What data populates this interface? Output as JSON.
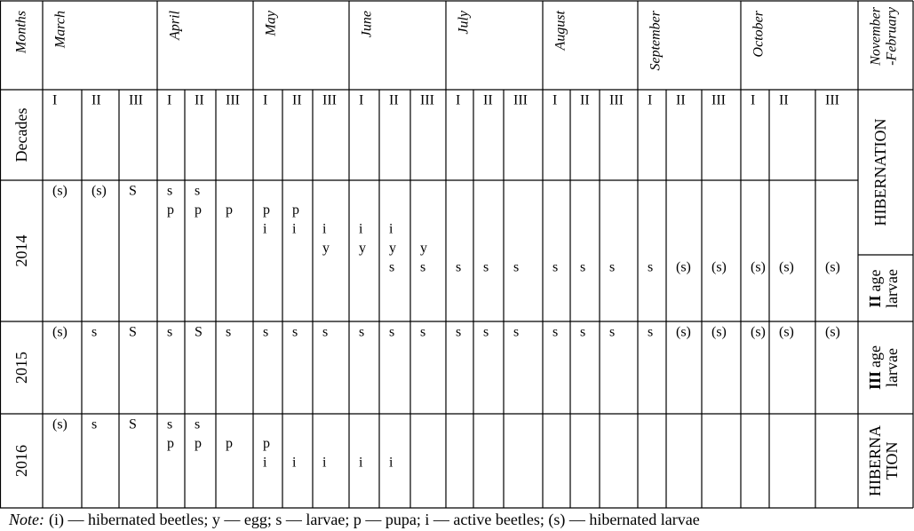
{
  "corner_label": "Months",
  "months": [
    "March",
    "April",
    "May",
    "June",
    "July",
    "August",
    "September",
    "October"
  ],
  "last_month": [
    "November",
    "-February"
  ],
  "decades": {
    "label": "Decades",
    "values": [
      "I",
      "II",
      "III",
      "I",
      "II",
      "III",
      "I",
      "II",
      "III",
      "I",
      "II",
      "III",
      "I",
      "II",
      "III",
      "I",
      "II",
      "III",
      "I",
      "II",
      "III",
      "I",
      "II",
      "III"
    ]
  },
  "rows": [
    {
      "label": "2014",
      "cells": [
        [
          "(s)"
        ],
        [
          "(s)"
        ],
        [
          "S"
        ],
        [
          "s",
          "p"
        ],
        [
          "s",
          "p"
        ],
        [
          null,
          "p"
        ],
        [
          null,
          "p",
          "i"
        ],
        [
          null,
          "p",
          "i"
        ],
        [
          null,
          null,
          "i",
          "y"
        ],
        [
          null,
          null,
          "i",
          "y"
        ],
        [
          null,
          null,
          "i",
          "y",
          "s"
        ],
        [
          null,
          null,
          null,
          "y",
          "s"
        ],
        [
          null,
          null,
          null,
          null,
          "s"
        ],
        [
          null,
          null,
          null,
          null,
          "s"
        ],
        [
          null,
          null,
          null,
          null,
          "s"
        ],
        [
          null,
          null,
          null,
          null,
          "s"
        ],
        [
          null,
          null,
          null,
          null,
          "s"
        ],
        [
          null,
          null,
          null,
          null,
          "s"
        ],
        [
          null,
          null,
          null,
          null,
          "s"
        ],
        [
          null,
          null,
          null,
          null,
          "(s)"
        ],
        [
          null,
          null,
          null,
          null,
          "(s)"
        ],
        [
          null,
          null,
          null,
          null,
          "(s)"
        ],
        [
          null,
          null,
          null,
          null,
          "(s)"
        ],
        [
          null,
          null,
          null,
          null,
          "(s)"
        ]
      ]
    },
    {
      "label": "2015",
      "cells": [
        [
          "(s)"
        ],
        [
          "s"
        ],
        [
          "S"
        ],
        [
          "s"
        ],
        [
          "S"
        ],
        [
          "s"
        ],
        [
          "s"
        ],
        [
          "s"
        ],
        [
          "s"
        ],
        [
          "s"
        ],
        [
          "s"
        ],
        [
          "s"
        ],
        [
          "s"
        ],
        [
          "s"
        ],
        [
          "s"
        ],
        [
          "s"
        ],
        [
          "s"
        ],
        [
          "s"
        ],
        [
          "s"
        ],
        [
          "(s)"
        ],
        [
          "(s)"
        ],
        [
          "(s)"
        ],
        [
          "(s)"
        ],
        [
          "(s)"
        ]
      ]
    },
    {
      "label": "2016",
      "cells": [
        [
          "(s)"
        ],
        [
          "s"
        ],
        [
          "S"
        ],
        [
          "s",
          "p"
        ],
        [
          "s",
          "p"
        ],
        [
          null,
          "p"
        ],
        [
          null,
          "p",
          "i"
        ],
        [
          null,
          null,
          "i"
        ],
        [
          null,
          null,
          "i"
        ],
        [
          null,
          null,
          "i"
        ],
        [
          null,
          null,
          "i"
        ],
        [],
        [],
        [],
        [],
        [],
        [],
        [],
        [],
        [],
        [],
        [],
        [],
        []
      ]
    }
  ],
  "status": {
    "hibernation_top": "HIBERNATION",
    "larvae_2014": {
      "grade": "II",
      "lines": [
        "age",
        "larvae"
      ]
    },
    "larvae_2015": {
      "grade": "III",
      "lines": [
        "age",
        "larvae"
      ]
    },
    "hibernation_2016": [
      "HIBERNA",
      "TION"
    ]
  },
  "note": {
    "label": "Note:",
    "text": "(i) — hibernated beetles; y — egg; s — larvae; p — pupa; i — active beetles; (s) — hibernated larvae"
  }
}
